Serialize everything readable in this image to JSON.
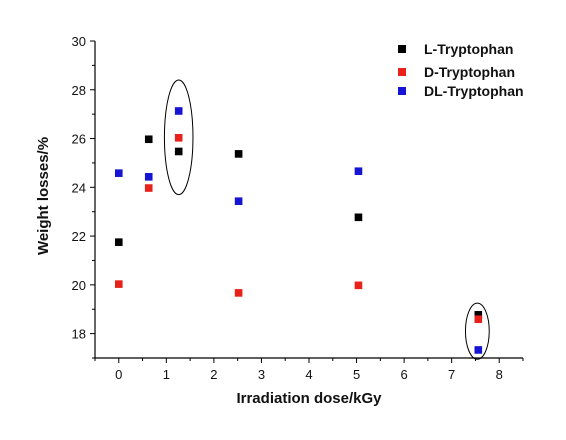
{
  "chart_data": {
    "type": "scatter",
    "title": "",
    "xlabel": "Irradiation dose/kGy",
    "ylabel": "Weight losses/%",
    "xlim": [
      -0.5,
      8.5
    ],
    "ylim": [
      17,
      30
    ],
    "xticks": [
      0,
      1,
      2,
      3,
      4,
      5,
      6,
      7,
      8
    ],
    "yticks": [
      18,
      20,
      22,
      24,
      26,
      28,
      30
    ],
    "grid": false,
    "legend_position": "top-right",
    "series": [
      {
        "name": "L-Tryptophan",
        "color": "#000000",
        "x": [
          0,
          0.63,
          1.26,
          2.52,
          5.04,
          7.56
        ],
        "y": [
          21.75,
          25.97,
          25.47,
          25.37,
          22.77,
          18.77
        ]
      },
      {
        "name": "D-Tryptophan",
        "color": "#e8211b",
        "x": [
          0,
          0.63,
          1.26,
          2.52,
          5.04,
          7.56
        ],
        "y": [
          20.03,
          23.97,
          26.03,
          19.67,
          19.98,
          18.59
        ]
      },
      {
        "name": "DL-Tryptophan",
        "color": "#1414d2",
        "x": [
          0,
          0.63,
          1.26,
          2.52,
          5.04,
          7.56
        ],
        "y": [
          24.58,
          24.43,
          27.13,
          23.43,
          24.66,
          17.33
        ]
      }
    ],
    "annotations": [
      {
        "shape": "ellipse",
        "cx": 1.26,
        "cy": 26.05,
        "rx": 0.3,
        "ry": 2.35
      },
      {
        "shape": "ellipse",
        "cx": 7.54,
        "cy": 18.1,
        "rx": 0.25,
        "ry": 1.15
      }
    ]
  }
}
